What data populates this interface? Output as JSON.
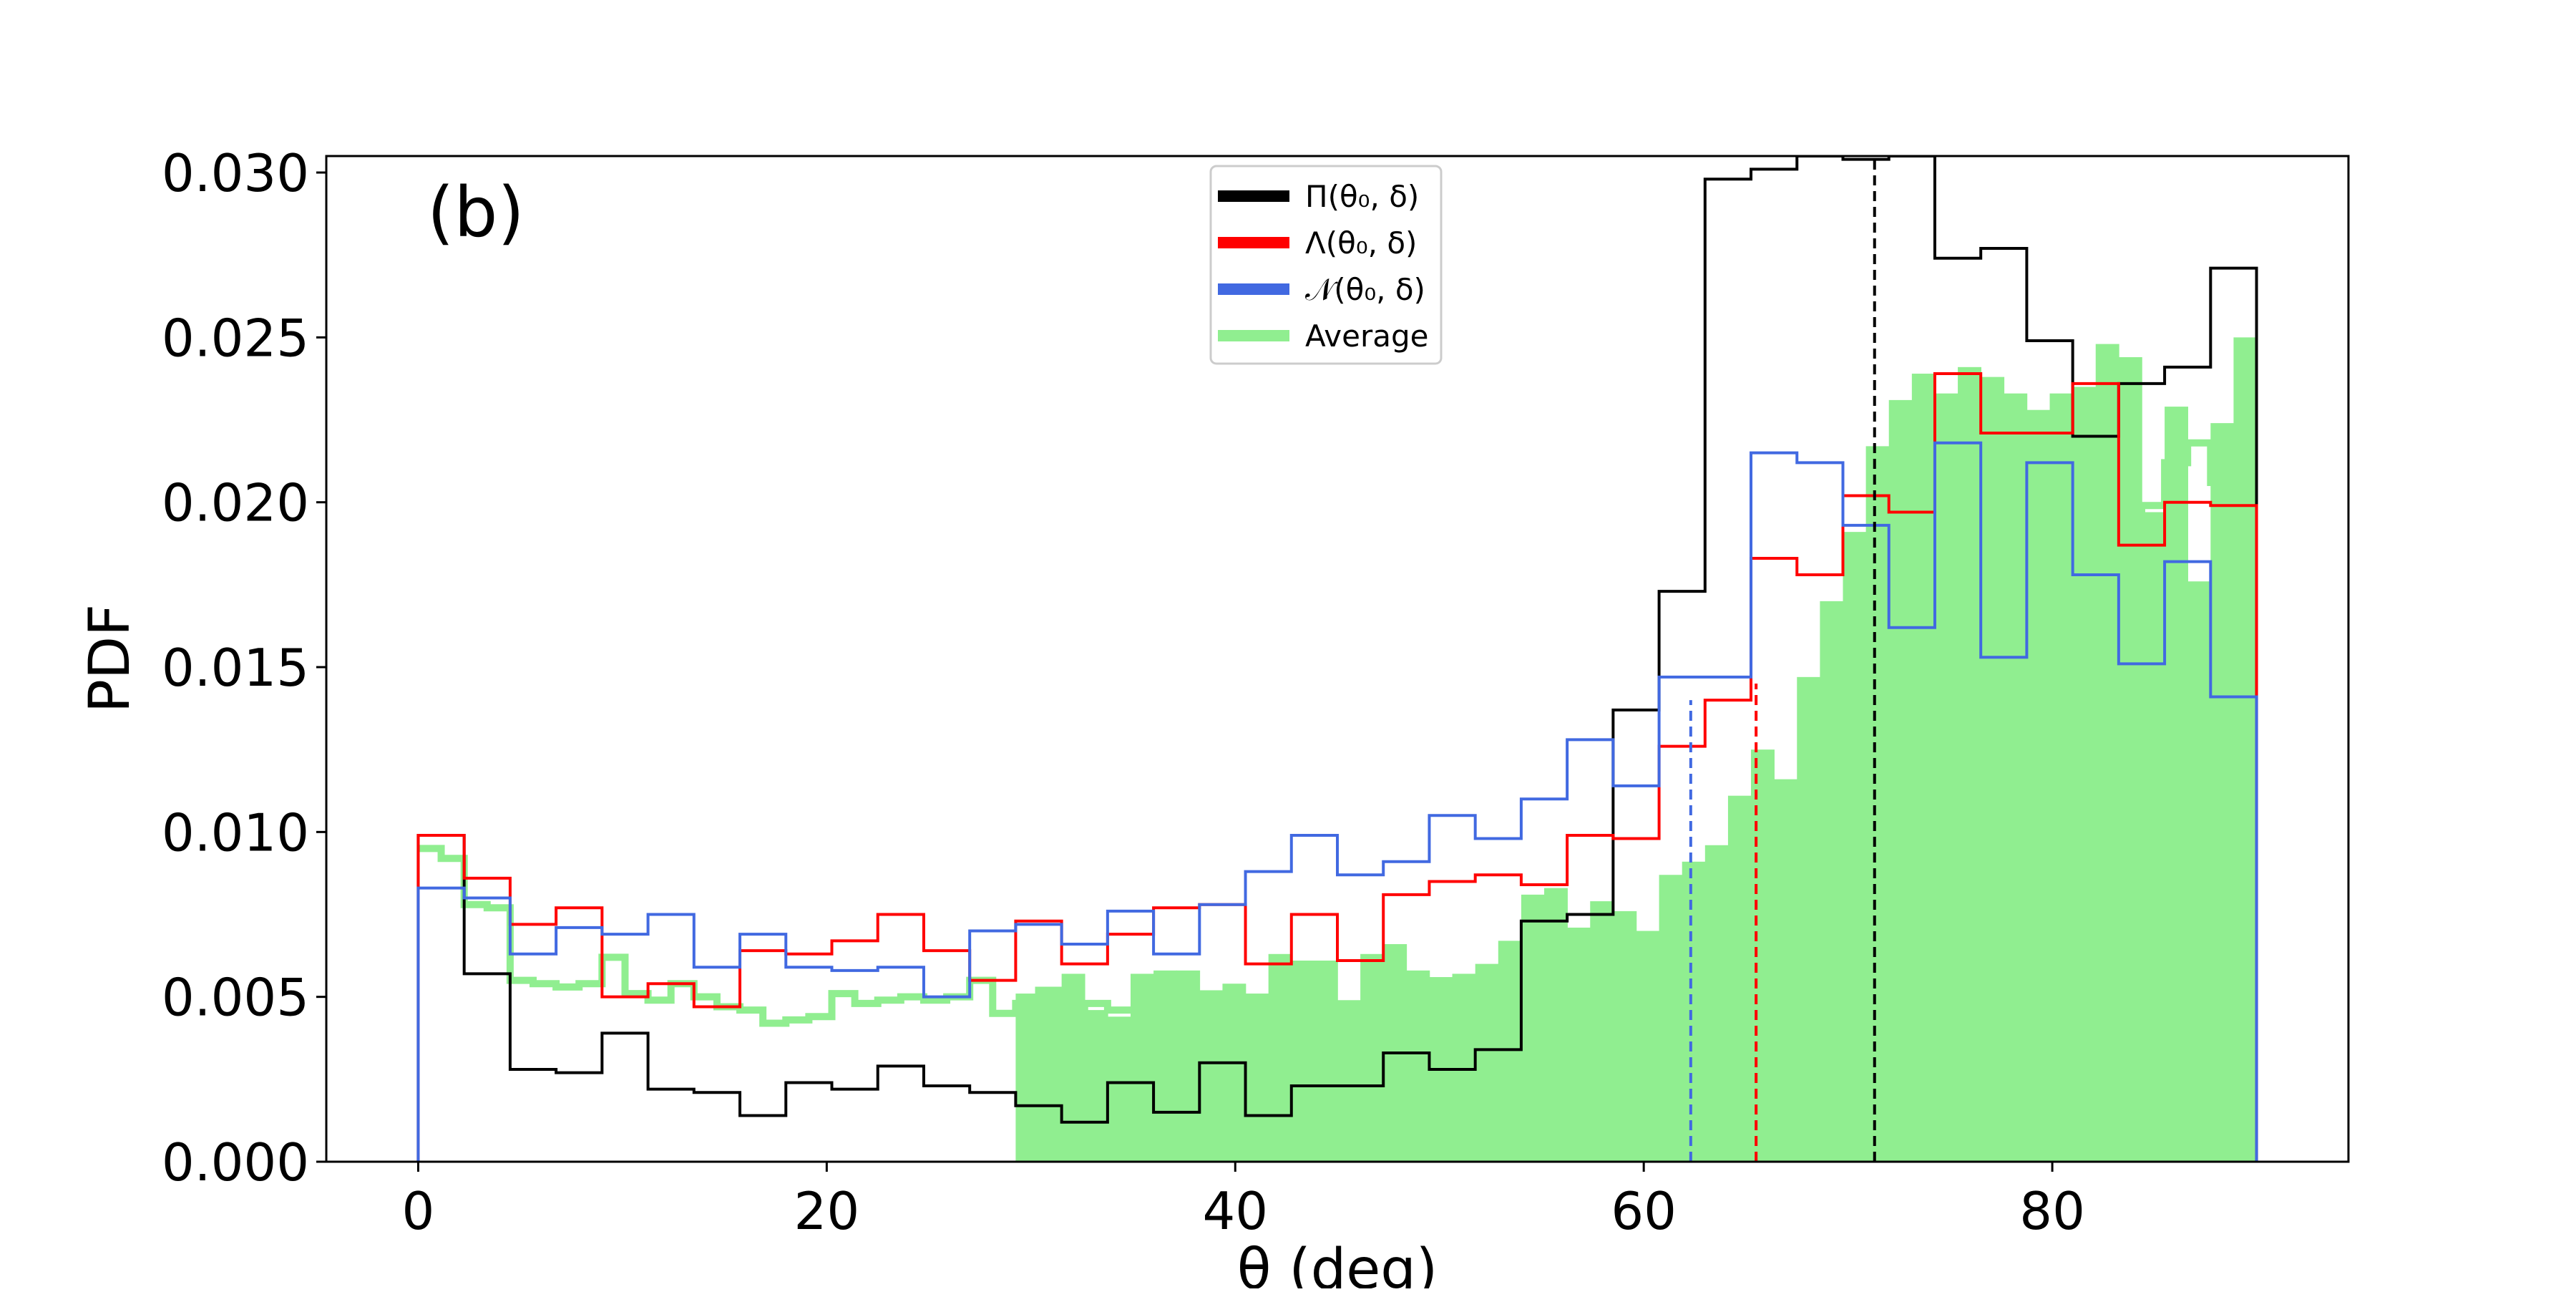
{
  "chart_data": {
    "type": "histogram",
    "panel_label": "(b)",
    "xlabel": "θ (deg)",
    "ylabel": "PDF",
    "xlim": [
      -4.5,
      94.5
    ],
    "ylim": [
      0,
      0.0305
    ],
    "xticks": [
      0,
      20,
      40,
      60,
      80
    ],
    "xtick_labels": [
      "0",
      "20",
      "40",
      "60",
      "80"
    ],
    "yticks": [
      0,
      0.005,
      0.01,
      0.015,
      0.02,
      0.025,
      0.03
    ],
    "ytick_labels": [
      "0.000",
      "0.005",
      "0.010",
      "0.015",
      "0.020",
      "0.025",
      "0.030"
    ],
    "grid": false,
    "legend": {
      "position": "upper-center",
      "entries": [
        {
          "label": "Π(θ₀, δ)",
          "color": "#000000"
        },
        {
          "label": "Λ(θ₀, δ)",
          "color": "#ff0000"
        },
        {
          "label": "𝒩(θ₀, δ)",
          "color": "#4169e1"
        },
        {
          "label": "Average",
          "color": "#90ee90"
        }
      ]
    },
    "series": [
      {
        "name": "Π(θ₀, δ)",
        "style": "step",
        "color": "#000000",
        "bin_edges": [
          0,
          2.25,
          4.5,
          6.75,
          9,
          11.25,
          13.5,
          15.75,
          18,
          20.25,
          22.5,
          24.75,
          27,
          29.25,
          31.5,
          33.75,
          36,
          38.25,
          40.5,
          42.75,
          45,
          47.25,
          49.5,
          51.75,
          54,
          56.25,
          58.5,
          60.75,
          63,
          65.25,
          67.5,
          69.75,
          72,
          74.25,
          76.5,
          78.75,
          81,
          83.25,
          85.5,
          87.75,
          90
        ],
        "values": [
          0.0099,
          0.0057,
          0.0028,
          0.0027,
          0.0039,
          0.0022,
          0.0021,
          0.0014,
          0.0024,
          0.0022,
          0.0029,
          0.0023,
          0.0021,
          0.0017,
          0.0012,
          0.0024,
          0.0015,
          0.003,
          0.0014,
          0.0023,
          0.0023,
          0.0033,
          0.0028,
          0.0034,
          0.0073,
          0.0075,
          0.0137,
          0.0173,
          0.0298,
          0.0301,
          0.0306,
          0.0304,
          0.0315,
          0.0274,
          0.0277,
          0.0249,
          0.022,
          0.0236,
          0.0241,
          0.0271
        ]
      },
      {
        "name": "Λ(θ₀, δ)",
        "style": "step",
        "color": "#ff0000",
        "bin_edges": [
          0,
          2.25,
          4.5,
          6.75,
          9,
          11.25,
          13.5,
          15.75,
          18,
          20.25,
          22.5,
          24.75,
          27,
          29.25,
          31.5,
          33.75,
          36,
          38.25,
          40.5,
          42.75,
          45,
          47.25,
          49.5,
          51.75,
          54,
          56.25,
          58.5,
          60.75,
          63,
          65.25,
          67.5,
          69.75,
          72,
          74.25,
          76.5,
          78.75,
          81,
          83.25,
          85.5,
          87.75,
          90
        ],
        "values": [
          0.0099,
          0.0086,
          0.0072,
          0.0077,
          0.005,
          0.0054,
          0.0047,
          0.0064,
          0.0063,
          0.0067,
          0.0075,
          0.0064,
          0.0055,
          0.0073,
          0.006,
          0.0069,
          0.0077,
          0.0078,
          0.006,
          0.0075,
          0.0061,
          0.0081,
          0.0085,
          0.0087,
          0.0084,
          0.0099,
          0.0098,
          0.0126,
          0.014,
          0.0183,
          0.0178,
          0.0202,
          0.0197,
          0.0239,
          0.0221,
          0.0221,
          0.0236,
          0.0187,
          0.02,
          0.0199
        ]
      },
      {
        "name": "𝒩(θ₀, δ)",
        "style": "step",
        "color": "#4169e1",
        "bin_edges": [
          0,
          2.25,
          4.5,
          6.75,
          9,
          11.25,
          13.5,
          15.75,
          18,
          20.25,
          22.5,
          24.75,
          27,
          29.25,
          31.5,
          33.75,
          36,
          38.25,
          40.5,
          42.75,
          45,
          47.25,
          49.5,
          51.75,
          54,
          56.25,
          58.5,
          60.75,
          63,
          65.25,
          67.5,
          69.75,
          72,
          74.25,
          76.5,
          78.75,
          81,
          83.25,
          85.5,
          87.75,
          90
        ],
        "values": [
          0.0083,
          0.008,
          0.0063,
          0.0071,
          0.0069,
          0.0075,
          0.0059,
          0.0069,
          0.0059,
          0.0058,
          0.0059,
          0.005,
          0.007,
          0.0072,
          0.0066,
          0.0076,
          0.0063,
          0.0078,
          0.0088,
          0.0099,
          0.0087,
          0.0091,
          0.0105,
          0.0098,
          0.011,
          0.0128,
          0.0114,
          0.0147,
          0.0147,
          0.0215,
          0.0212,
          0.0193,
          0.0162,
          0.0218,
          0.0153,
          0.0212,
          0.0178,
          0.0151,
          0.0182,
          0.0141
        ]
      },
      {
        "name": "Average",
        "style": "step-thick",
        "color": "#90ee90",
        "x_range": [
          0,
          29.25
        ],
        "bin_width": 1.125,
        "values": [
          0.0095,
          0.0092,
          0.0078,
          0.0077,
          0.0055,
          0.0054,
          0.0053,
          0.0054,
          0.0062,
          0.0051,
          0.0049,
          0.0054,
          0.005,
          0.0047,
          0.0046,
          0.0042,
          0.0043,
          0.0044,
          0.0051,
          0.0048,
          0.0049,
          0.005,
          0.0049,
          0.005,
          0.0055,
          0.0045,
          0.0048,
          0.0052,
          0.0045,
          0.0048,
          0.0046
        ]
      },
      {
        "name": "Average",
        "style": "filled",
        "color": "#90ee90",
        "x_range": [
          29.25,
          81
        ],
        "bin_width": 1.125,
        "values": [
          0.0051,
          0.0053,
          0.0057,
          0.0046,
          0.0044,
          0.0057,
          0.0058,
          0.0058,
          0.0052,
          0.0054,
          0.0051,
          0.0063,
          0.0061,
          0.0061,
          0.0049,
          0.0063,
          0.0066,
          0.0058,
          0.0056,
          0.0057,
          0.006,
          0.0067,
          0.0081,
          0.0083,
          0.0071,
          0.0079,
          0.0076,
          0.007,
          0.0087,
          0.0091,
          0.0096,
          0.0111,
          0.0125,
          0.0116,
          0.0147,
          0.017,
          0.0191,
          0.0217,
          0.0231,
          0.0239,
          0.0233,
          0.0241,
          0.0238,
          0.0233,
          0.0228,
          0.0233,
          0.0235,
          0.0248,
          0.0244,
          0.0197,
          0.0229,
          0.0176,
          0.0224,
          0.025
        ]
      },
      {
        "name": "Average",
        "style": "step-thick",
        "color": "#90ee90",
        "x_range": [
          81,
          90
        ],
        "bin_width": 1.125,
        "values": [
          0.0219,
          0.0205,
          0.0184,
          0.0199,
          0.0212,
          0.0218,
          0.0206,
          0.0191
        ]
      }
    ],
    "vlines": [
      {
        "x": 62.3,
        "color": "#4169e1",
        "style": "dashed",
        "y_top": 0.014
      },
      {
        "x": 65.5,
        "color": "#ff0000",
        "style": "dashed",
        "y_top": 0.0145
      },
      {
        "x": 71.3,
        "color": "#000000",
        "style": "dashed",
        "y_top": 0.0305
      }
    ]
  }
}
